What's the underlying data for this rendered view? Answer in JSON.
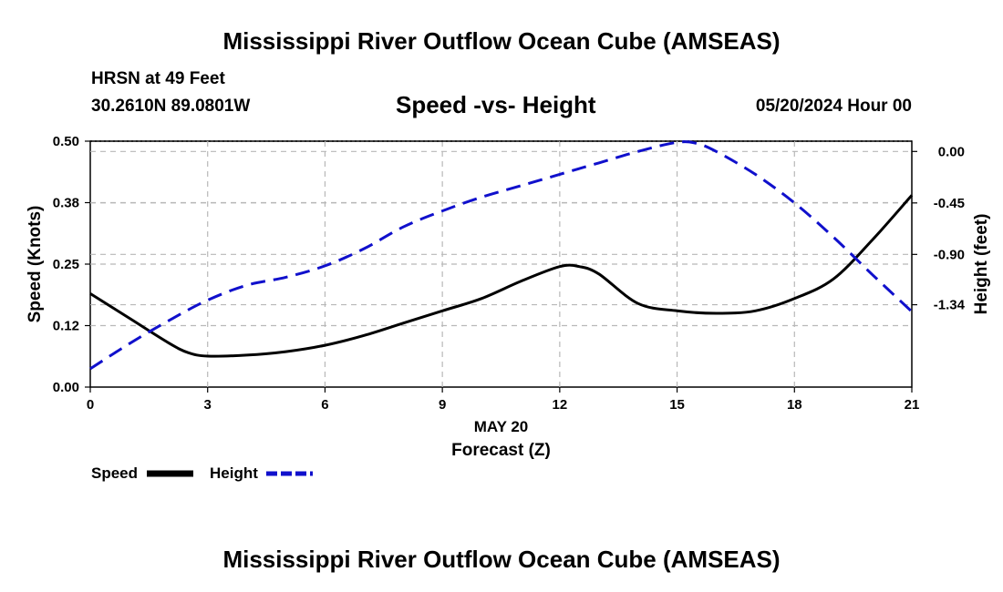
{
  "page": {
    "title_top": "Mississippi River Outflow Ocean Cube (AMSEAS)",
    "title_bottom": "Mississippi River Outflow Ocean Cube (AMSEAS)",
    "station": "HRSN at 49 Feet",
    "coords": "30.2610N  89.0801W",
    "plot_title": "Speed -vs- Height",
    "date_label": "05/20/2024 Hour 00"
  },
  "chart_data": {
    "type": "line",
    "title": "Speed -vs- Height",
    "xlabel": "Forecast (Z)",
    "xdate_label": "MAY 20",
    "ylabel_left": "Speed (Knots)",
    "ylabel_right": "Height (feet)",
    "xlim": [
      0,
      21
    ],
    "ylim_left": [
      0,
      0.5
    ],
    "ylim_right": [
      -2.06,
      0.09
    ],
    "x_ticks": [
      0,
      3,
      6,
      9,
      12,
      15,
      18,
      21
    ],
    "x_tick_labels": [
      "0",
      "3",
      "6",
      "9",
      "12",
      "15",
      "18",
      "21"
    ],
    "left_ticks": [
      0,
      0.125,
      0.25,
      0.375,
      0.5
    ],
    "left_tick_labels": [
      "0.00",
      "0.12",
      "0.25",
      "0.38",
      "0.50"
    ],
    "right_ticks": [
      0,
      -0.45,
      -0.9,
      -1.34
    ],
    "right_tick_labels": [
      "0.00",
      "-0.45",
      "-0.90",
      "-1.34"
    ],
    "grid": true,
    "legend": {
      "position": "bottom-left",
      "entries": [
        {
          "label": "Speed",
          "color": "#000000",
          "style": "solid"
        },
        {
          "label": "Height",
          "color": "#1010cc",
          "style": "dashed"
        }
      ]
    },
    "series": [
      {
        "name": "Speed",
        "axis": "left",
        "color": "#000000",
        "style": "solid",
        "x": [
          0,
          1,
          2,
          2.5,
          3,
          4,
          5,
          6,
          7,
          8,
          9,
          10,
          11,
          12,
          12.5,
          13,
          14,
          15,
          16,
          17,
          18,
          19,
          20,
          21
        ],
        "values": [
          0.19,
          0.14,
          0.09,
          0.07,
          0.063,
          0.065,
          0.072,
          0.085,
          0.105,
          0.13,
          0.155,
          0.18,
          0.215,
          0.245,
          0.245,
          0.23,
          0.17,
          0.155,
          0.15,
          0.155,
          0.18,
          0.22,
          0.3,
          0.39
        ]
      },
      {
        "name": "Height",
        "axis": "right",
        "color": "#1010cc",
        "style": "dashed",
        "x": [
          0,
          1,
          2,
          3,
          4,
          5,
          6,
          7,
          8,
          9,
          10,
          11,
          12,
          13,
          14,
          15,
          15.5,
          16,
          17,
          18,
          19,
          20,
          21
        ],
        "values": [
          -1.9,
          -1.68,
          -1.48,
          -1.3,
          -1.17,
          -1.1,
          -1.0,
          -0.85,
          -0.66,
          -0.52,
          -0.4,
          -0.3,
          -0.2,
          -0.1,
          0.0,
          0.08,
          0.07,
          0.0,
          -0.2,
          -0.45,
          -0.75,
          -1.08,
          -1.4
        ]
      }
    ]
  }
}
